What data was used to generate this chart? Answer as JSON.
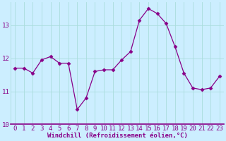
{
  "x": [
    0,
    1,
    2,
    3,
    4,
    5,
    6,
    7,
    8,
    9,
    10,
    11,
    12,
    13,
    14,
    15,
    16,
    17,
    18,
    19,
    20,
    21,
    22,
    23
  ],
  "y": [
    11.7,
    11.7,
    11.55,
    11.95,
    12.05,
    11.85,
    11.85,
    10.45,
    10.8,
    11.6,
    11.65,
    11.65,
    11.95,
    12.2,
    13.15,
    13.5,
    13.35,
    13.05,
    12.35,
    11.55,
    11.1,
    11.05,
    11.1,
    11.45
  ],
  "line_color": "#880088",
  "marker": "D",
  "bg_color": "#cceeff",
  "grid_color": "#aadddd",
  "xlabel": "Windchill (Refroidissement éolien,°C)",
  "xlabel_color": "#880088",
  "tick_color": "#880088",
  "ylim": [
    10.0,
    13.7
  ],
  "xlim": [
    -0.5,
    23.5
  ],
  "yticks": [
    10,
    11,
    12,
    13
  ],
  "xticks": [
    0,
    1,
    2,
    3,
    4,
    5,
    6,
    7,
    8,
    9,
    10,
    11,
    12,
    13,
    14,
    15,
    16,
    17,
    18,
    19,
    20,
    21,
    22,
    23
  ],
  "fontsize": 6.5,
  "markersize": 2.5
}
